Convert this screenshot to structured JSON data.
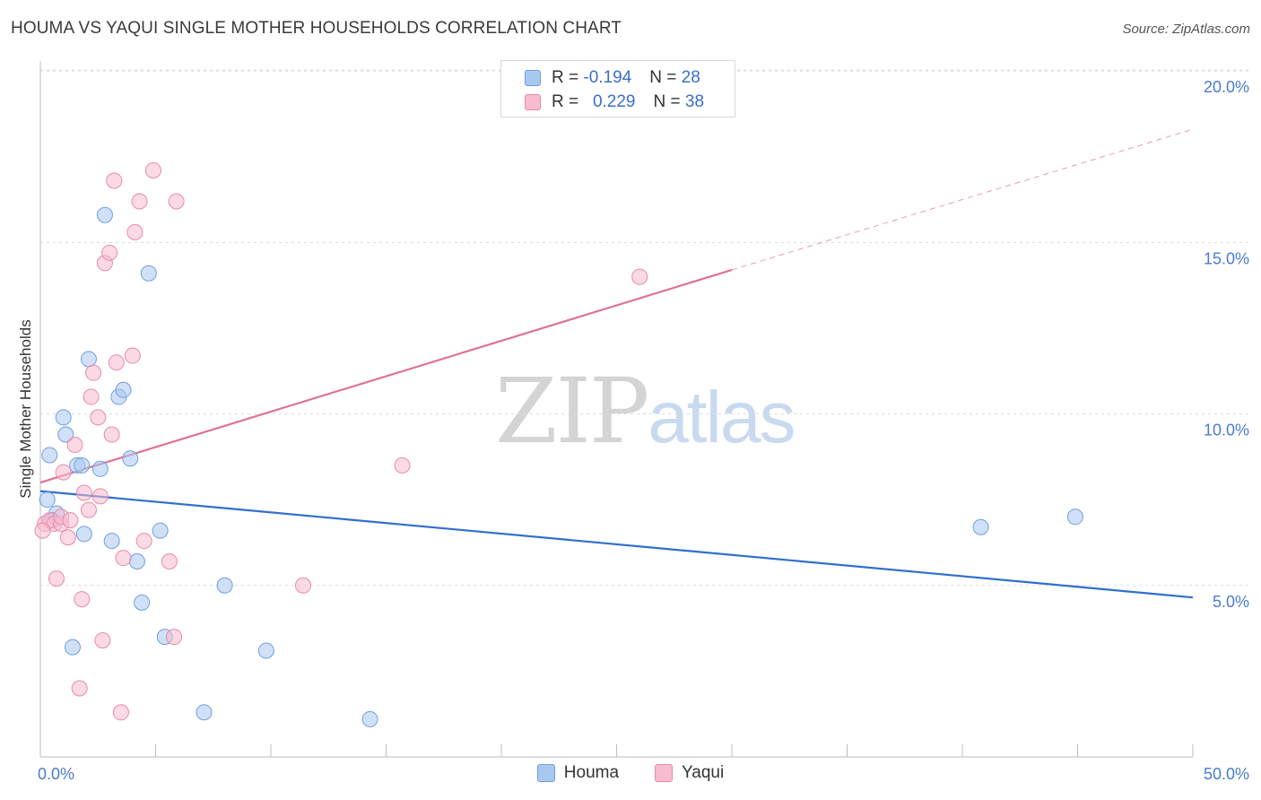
{
  "header": {
    "title": "HOUMA VS YAQUI SINGLE MOTHER HOUSEHOLDS CORRELATION CHART",
    "source": "Source: ZipAtlas.com"
  },
  "watermark": {
    "zip": "ZIP",
    "atlas": "atlas"
  },
  "legend": {
    "rows": [
      {
        "r_label": "R = ",
        "r_value": "-0.194",
        "n_label": "N = ",
        "n_value": "28",
        "color": "#a9c8f0",
        "border": "#6f9fe0"
      },
      {
        "r_label": "R = ",
        "r_value": "0.229",
        "n_label": "N = ",
        "n_value": "38",
        "color": "#f7bcd0",
        "border": "#e88aaa"
      }
    ]
  },
  "bottom_legend": [
    {
      "label": "Houma",
      "color": "#a9c8f0",
      "border": "#6f9fe0"
    },
    {
      "label": "Yaqui",
      "color": "#f7bcd0",
      "border": "#e88aaa"
    }
  ],
  "chart_data": {
    "type": "scatter",
    "title": "HOUMA VS YAQUI SINGLE MOTHER HOUSEHOLDS CORRELATION CHART",
    "xlabel": "",
    "ylabel": "Single Mother Households",
    "xlim": [
      0,
      50
    ],
    "ylim": [
      0,
      20.5
    ],
    "x_tick_labels": [
      "0.0%",
      "50.0%"
    ],
    "y_ticks": [
      5,
      10,
      15,
      20
    ],
    "y_tick_labels": [
      "5.0%",
      "10.0%",
      "15.0%",
      "20.0%"
    ],
    "grid": true,
    "series": [
      {
        "name": "Houma",
        "color": "#6f9fe0",
        "fill": "#a9c8f0",
        "line_color": "#2f6fcc",
        "trend": {
          "x0": 0,
          "y0": 7.75,
          "x1": 50,
          "y1": 4.65
        },
        "points": [
          [
            0.3,
            7.5
          ],
          [
            0.4,
            8.8
          ],
          [
            0.7,
            7.1
          ],
          [
            1.0,
            9.9
          ],
          [
            1.1,
            9.4
          ],
          [
            1.4,
            3.2
          ],
          [
            1.6,
            8.5
          ],
          [
            1.8,
            8.5
          ],
          [
            1.9,
            6.5
          ],
          [
            2.1,
            11.6
          ],
          [
            2.6,
            8.4
          ],
          [
            2.8,
            15.8
          ],
          [
            3.1,
            6.3
          ],
          [
            3.4,
            10.5
          ],
          [
            3.6,
            10.7
          ],
          [
            3.9,
            8.7
          ],
          [
            4.2,
            5.7
          ],
          [
            4.4,
            4.5
          ],
          [
            4.7,
            14.1
          ],
          [
            5.2,
            6.6
          ],
          [
            5.4,
            3.5
          ],
          [
            7.1,
            1.3
          ],
          [
            8.0,
            5.0
          ],
          [
            9.8,
            3.1
          ],
          [
            14.3,
            1.1
          ],
          [
            40.8,
            6.7
          ],
          [
            44.9,
            7.0
          ],
          [
            0.5,
            6.9
          ]
        ]
      },
      {
        "name": "Yaqui",
        "color": "#e88aaa",
        "fill": "#f7bcd0",
        "line_color": "#e07098",
        "trend": {
          "x0": 0,
          "y0": 8.0,
          "x1": 30,
          "y1": 14.2
        },
        "trend_dashed": {
          "x0": 30,
          "y0": 14.2,
          "x1": 50,
          "y1": 18.3
        },
        "points": [
          [
            0.2,
            6.8
          ],
          [
            0.4,
            6.9
          ],
          [
            0.6,
            6.8
          ],
          [
            0.7,
            5.2
          ],
          [
            0.9,
            6.8
          ],
          [
            1.0,
            8.3
          ],
          [
            1.2,
            6.4
          ],
          [
            1.5,
            9.1
          ],
          [
            1.7,
            2.0
          ],
          [
            1.8,
            4.6
          ],
          [
            1.9,
            7.7
          ],
          [
            2.1,
            7.2
          ],
          [
            2.2,
            10.5
          ],
          [
            2.3,
            11.2
          ],
          [
            2.5,
            9.9
          ],
          [
            2.6,
            7.6
          ],
          [
            2.7,
            3.4
          ],
          [
            2.8,
            14.4
          ],
          [
            3.0,
            14.7
          ],
          [
            3.1,
            9.4
          ],
          [
            3.2,
            16.8
          ],
          [
            3.3,
            11.5
          ],
          [
            3.5,
            1.3
          ],
          [
            3.6,
            5.8
          ],
          [
            4.0,
            11.7
          ],
          [
            4.1,
            15.3
          ],
          [
            4.3,
            16.2
          ],
          [
            4.5,
            6.3
          ],
          [
            4.9,
            17.1
          ],
          [
            5.6,
            5.7
          ],
          [
            5.8,
            3.5
          ],
          [
            5.9,
            16.2
          ],
          [
            11.4,
            5.0
          ],
          [
            15.7,
            8.5
          ],
          [
            26.0,
            14.0
          ],
          [
            0.9,
            7.0
          ],
          [
            1.3,
            6.9
          ],
          [
            0.1,
            6.6
          ]
        ]
      }
    ]
  }
}
